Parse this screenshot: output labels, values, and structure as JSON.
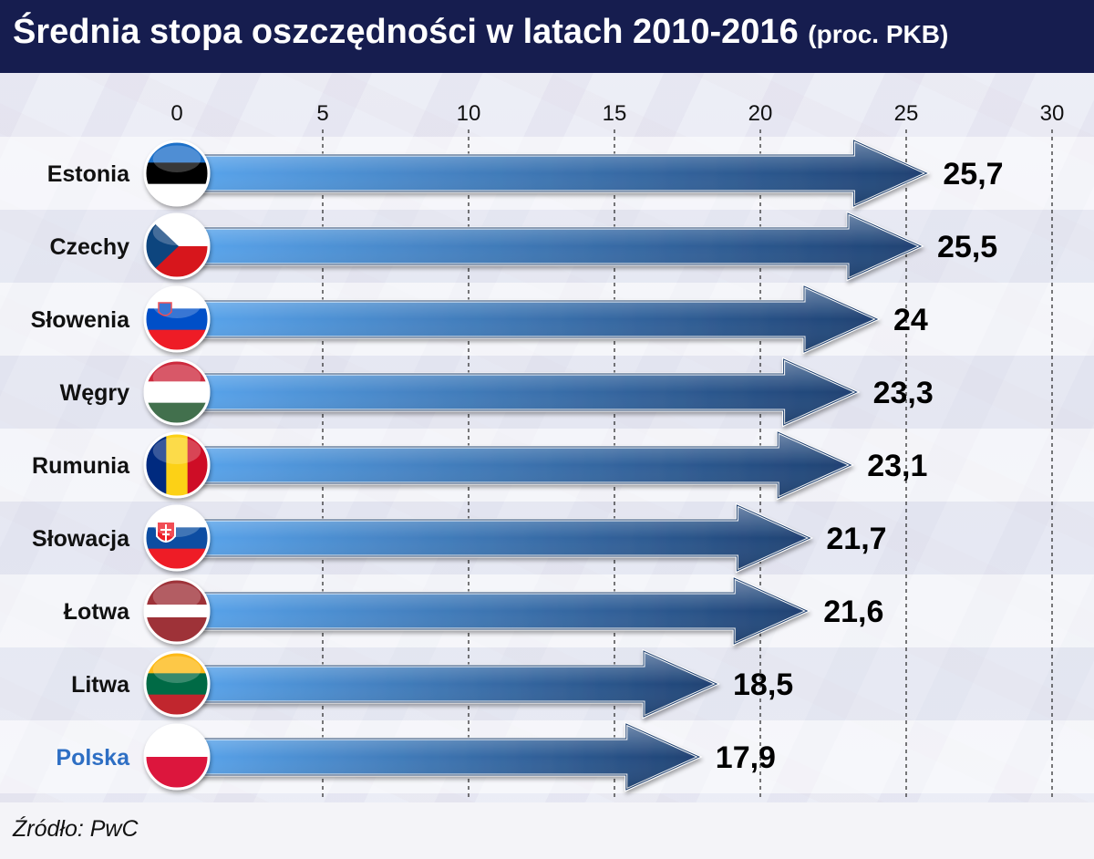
{
  "header": {
    "title": "Średnia stopa oszczędności w latach 2010-2016",
    "subtitle": "(proc. PKB)"
  },
  "source": "Źródło: PwC",
  "colors": {
    "header_bg": "#161d4f",
    "arrow_dark": "#1f4172",
    "arrow_light": "#5aa6ee",
    "highlight_label": "#2e6fc4"
  },
  "chart_data": {
    "type": "bar",
    "orientation": "horizontal",
    "title": "Średnia stopa oszczędności w latach 2010-2016 (proc. PKB)",
    "categories": [
      "Estonia",
      "Czechy",
      "Słowenia",
      "Węgry",
      "Rumunia",
      "Słowacja",
      "Łotwa",
      "Litwa",
      "Polska"
    ],
    "values": [
      25.7,
      25.5,
      24,
      23.3,
      23.1,
      21.7,
      21.6,
      18.5,
      17.9
    ],
    "value_labels": [
      "25,7",
      "25,5",
      "24",
      "23,3",
      "23,1",
      "21,7",
      "21,6",
      "18,5",
      "17,9"
    ],
    "xlim": [
      0,
      30
    ],
    "xticks": [
      0,
      5,
      10,
      15,
      20,
      25,
      30
    ],
    "grid": "vertical dashed",
    "highlight": "Polska",
    "flags": [
      {
        "country": "Estonia",
        "icon": "estonia-flag-icon",
        "stripes": [
          "#1f6fc8",
          "#000000",
          "#ffffff"
        ]
      },
      {
        "country": "Czechy",
        "icon": "czech-flag-icon",
        "stripes": [
          "#ffffff",
          "#d7141a"
        ],
        "triangle": "#11457e"
      },
      {
        "country": "Słowenia",
        "icon": "slovenia-flag-icon",
        "stripes": [
          "#ffffff",
          "#0050c8",
          "#ee1c25"
        ]
      },
      {
        "country": "Węgry",
        "icon": "hungary-flag-icon",
        "stripes": [
          "#cd2a3e",
          "#ffffff",
          "#436f4d"
        ]
      },
      {
        "country": "Rumunia",
        "icon": "romania-flag-icon",
        "vstripes": [
          "#002b7f",
          "#fcd116",
          "#ce1126"
        ]
      },
      {
        "country": "Słowacja",
        "icon": "slovakia-flag-icon",
        "stripes": [
          "#ffffff",
          "#0b4ea2",
          "#ee1c25"
        ]
      },
      {
        "country": "Łotwa",
        "icon": "latvia-flag-icon",
        "stripes": [
          "#9e3039",
          "#ffffff",
          "#9e3039"
        ],
        "weights": [
          2,
          1,
          2
        ]
      },
      {
        "country": "Litwa",
        "icon": "lithuania-flag-icon",
        "stripes": [
          "#fdb913",
          "#006a44",
          "#c1272d"
        ]
      },
      {
        "country": "Polska",
        "icon": "poland-flag-icon",
        "stripes": [
          "#ffffff",
          "#dc143c"
        ]
      }
    ]
  }
}
